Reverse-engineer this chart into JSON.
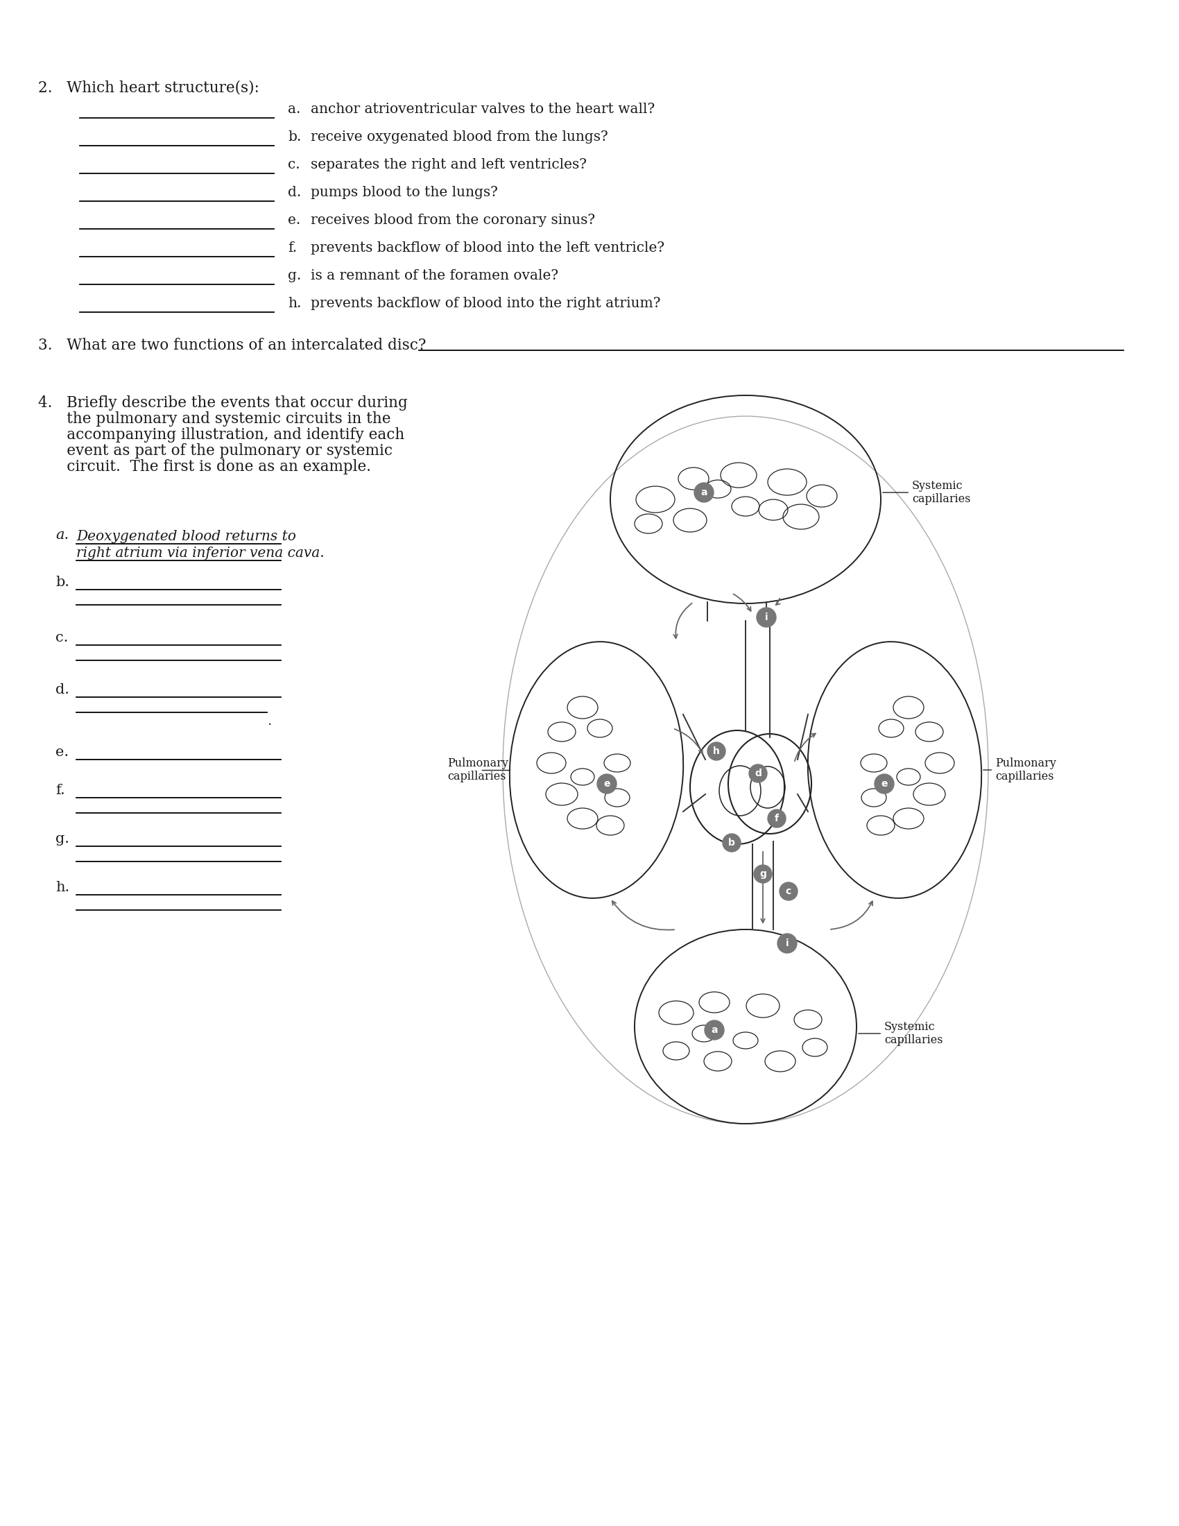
{
  "bg_color": "#ffffff",
  "text_color": "#1a1a1a",
  "q2_header": "2.   Which heart structure(s):",
  "q2_items": [
    [
      "a.",
      "anchor atrioventricular valves to the heart wall?"
    ],
    [
      "b.",
      "receive oxygenated blood from the lungs?"
    ],
    [
      "c.",
      "separates the right and left ventricles?"
    ],
    [
      "d.",
      "pumps blood to the lungs?"
    ],
    [
      "e.",
      "receives blood from the coronary sinus?"
    ],
    [
      "f.",
      "prevents backflow of blood into the left ventricle?"
    ],
    [
      "g.",
      "is a remnant of the foramen ovale?"
    ],
    [
      "h.",
      "prevents backflow of blood into the right atrium?"
    ]
  ],
  "q3_text": "3.   What are two functions of an intercalated disc? ",
  "q4_header_lines": [
    "4.   Briefly describe the events that occur during",
    "      the pulmonary and systemic circuits in the",
    "      accompanying illustration, and identify each",
    "      event as part of the pulmonary or systemic",
    "      circuit.  The first is done as an example."
  ],
  "q4_example_line1": "Deoxygenated blood returns to",
  "q4_example_line2": "right atrium via inferior vena cava.",
  "q4_items": [
    "b.",
    "c.",
    "d.",
    "e.",
    "f.",
    "g.",
    "h."
  ],
  "line_color": "#000000",
  "gray_color": "#888888",
  "diagram_gray": "#999999",
  "dark_color": "#222222",
  "mid_gray": "#666666"
}
